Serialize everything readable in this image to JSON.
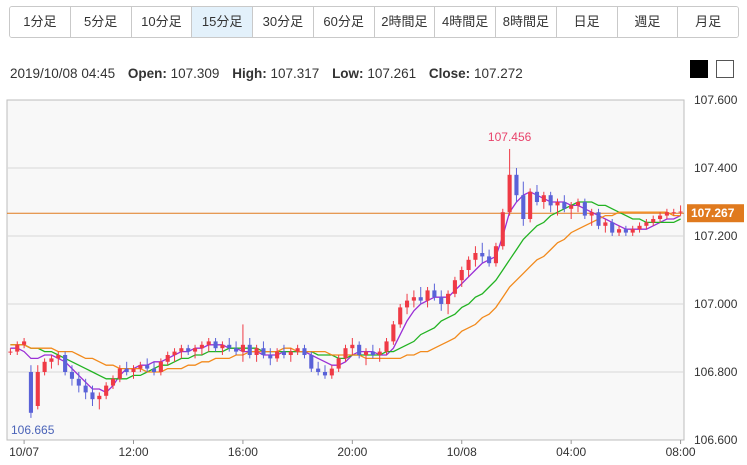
{
  "tabs": [
    {
      "label": "1分足",
      "active": false
    },
    {
      "label": "5分足",
      "active": false
    },
    {
      "label": "10分足",
      "active": false
    },
    {
      "label": "15分足",
      "active": true
    },
    {
      "label": "30分足",
      "active": false
    },
    {
      "label": "60分足",
      "active": false
    },
    {
      "label": "2時間足",
      "active": false
    },
    {
      "label": "4時間足",
      "active": false
    },
    {
      "label": "8時間足",
      "active": false
    },
    {
      "label": "日足",
      "active": false
    },
    {
      "label": "週足",
      "active": false
    },
    {
      "label": "月足",
      "active": false
    }
  ],
  "ohlc": {
    "datetime": "2019/10/08 04:45",
    "open_label": "Open:",
    "open": "107.309",
    "high_label": "High:",
    "high": "107.317",
    "low_label": "Low:",
    "low": "107.261",
    "close_label": "Close:",
    "close": "107.272"
  },
  "theme": {
    "dark_color": "#000000",
    "light_color": "#ffffff"
  },
  "colors": {
    "up": "#ef3a45",
    "down": "#5a62d8",
    "ma_short": "#9b2fd6",
    "ma_mid": "#22b322",
    "ma_long": "#f28a1c",
    "price_line": "#e07a1e"
  },
  "chart_data": {
    "type": "candlestick",
    "ylim": [
      106.6,
      107.6
    ],
    "y_ticks": [
      "107.600",
      "107.400",
      "107.200",
      "107.000",
      "106.800",
      "106.600"
    ],
    "x_ticks": [
      {
        "label": "10/07",
        "index": 2
      },
      {
        "label": "12:00",
        "index": 18
      },
      {
        "label": "16:00",
        "index": 34
      },
      {
        "label": "20:00",
        "index": 50
      },
      {
        "label": "10/08",
        "index": 66
      },
      {
        "label": "04:00",
        "index": 82
      },
      {
        "label": "08:00",
        "index": 98
      }
    ],
    "current_price": "107.267",
    "high_annotation": {
      "value": "107.456",
      "index": 73
    },
    "low_annotation": {
      "value": "106.665",
      "index": 3
    },
    "series": [
      {
        "name": "",
        "color": "#9b2fd6",
        "values": [
          106.87,
          106.87,
          106.86,
          106.84,
          106.84,
          106.85,
          106.85,
          106.84,
          106.83,
          106.81,
          106.79,
          106.77,
          106.75,
          106.75,
          106.74,
          106.76,
          106.79,
          106.81,
          106.81,
          106.82,
          106.82,
          106.83,
          106.83,
          106.84,
          106.85,
          106.86,
          106.86,
          106.87,
          106.87,
          106.88,
          106.88,
          106.88,
          106.87,
          106.87,
          106.86,
          106.86,
          106.86,
          106.85,
          106.85,
          106.85,
          106.86,
          106.86,
          106.86,
          106.86,
          106.85,
          106.84,
          106.83,
          106.82,
          106.82,
          106.83,
          106.85,
          106.86,
          106.86,
          106.86,
          106.85,
          106.85,
          106.87,
          106.91,
          106.95,
          106.98,
          107.0,
          107.01,
          107.02,
          107.02,
          107.02,
          107.04,
          107.06,
          107.08,
          107.1,
          107.12,
          107.13,
          107.14,
          107.2,
          107.27,
          107.3,
          107.32,
          107.33,
          107.32,
          107.31,
          107.3,
          107.3,
          107.3,
          107.29,
          107.29,
          107.28,
          107.27,
          107.26,
          107.25,
          107.24,
          107.23,
          107.22,
          107.22,
          107.22,
          107.22,
          107.23,
          107.24,
          107.25,
          107.25,
          107.26
        ]
      },
      {
        "name": "",
        "color": "#22b322",
        "values": [
          106.88,
          106.88,
          106.88,
          106.87,
          106.87,
          106.86,
          106.86,
          106.85,
          106.84,
          106.83,
          106.82,
          106.81,
          106.8,
          106.79,
          106.78,
          106.78,
          106.78,
          106.78,
          106.79,
          106.79,
          106.8,
          106.81,
          106.82,
          106.82,
          106.83,
          106.84,
          106.84,
          106.85,
          106.85,
          106.86,
          106.86,
          106.86,
          106.87,
          106.87,
          106.87,
          106.87,
          106.87,
          106.86,
          106.86,
          106.86,
          106.86,
          106.86,
          106.86,
          106.86,
          106.86,
          106.85,
          106.85,
          106.85,
          106.84,
          106.84,
          106.85,
          106.85,
          106.85,
          106.85,
          106.85,
          106.86,
          106.86,
          106.87,
          106.88,
          106.89,
          106.91,
          106.92,
          106.93,
          106.95,
          106.96,
          106.97,
          106.99,
          107.0,
          107.02,
          107.03,
          107.05,
          107.07,
          107.1,
          107.13,
          107.16,
          107.19,
          107.21,
          107.23,
          107.24,
          107.26,
          107.27,
          107.28,
          107.29,
          107.3,
          107.3,
          107.3,
          107.29,
          107.29,
          107.28,
          107.27,
          107.26,
          107.25,
          107.25,
          107.24,
          107.24,
          107.24,
          107.24,
          107.24,
          107.25
        ]
      },
      {
        "name": "",
        "color": "#f28a1c",
        "values": [
          106.88,
          106.88,
          106.88,
          106.87,
          106.87,
          106.87,
          106.87,
          106.86,
          106.86,
          106.86,
          106.85,
          106.84,
          106.84,
          106.83,
          106.82,
          106.82,
          106.81,
          106.81,
          106.81,
          106.81,
          106.8,
          106.8,
          106.8,
          106.81,
          106.81,
          106.81,
          106.82,
          106.82,
          106.83,
          106.83,
          106.84,
          106.84,
          106.84,
          106.85,
          106.85,
          106.86,
          106.86,
          106.86,
          106.86,
          106.86,
          106.87,
          106.87,
          106.86,
          106.86,
          106.86,
          106.86,
          106.86,
          106.85,
          106.85,
          106.85,
          106.85,
          106.85,
          106.84,
          106.84,
          106.84,
          106.84,
          106.84,
          106.84,
          106.85,
          106.85,
          106.86,
          106.86,
          106.87,
          106.88,
          106.89,
          106.9,
          106.92,
          106.93,
          106.94,
          106.96,
          106.97,
          106.99,
          107.02,
          107.05,
          107.07,
          107.09,
          107.11,
          107.13,
          107.14,
          107.16,
          107.18,
          107.19,
          107.21,
          107.22,
          107.23,
          107.24,
          107.25,
          107.26,
          107.26,
          107.27,
          107.27,
          107.27,
          107.27,
          107.27,
          107.27,
          107.27,
          107.27,
          107.26,
          107.26
        ]
      }
    ],
    "candles": [
      [
        106.86,
        106.87,
        106.85,
        106.86
      ],
      [
        106.86,
        106.89,
        106.85,
        106.88
      ],
      [
        106.88,
        106.9,
        106.87,
        106.89
      ],
      [
        106.8,
        106.82,
        106.665,
        106.68
      ],
      [
        106.7,
        106.82,
        106.69,
        106.8
      ],
      [
        106.8,
        106.84,
        106.79,
        106.83
      ],
      [
        106.83,
        106.85,
        106.81,
        106.84
      ],
      [
        106.84,
        106.86,
        106.82,
        106.85
      ],
      [
        106.85,
        106.86,
        106.79,
        106.8
      ],
      [
        106.8,
        106.82,
        106.76,
        106.78
      ],
      [
        106.78,
        106.8,
        106.74,
        106.76
      ],
      [
        106.76,
        106.78,
        106.72,
        106.74
      ],
      [
        106.74,
        106.76,
        106.7,
        106.72
      ],
      [
        106.72,
        106.74,
        106.69,
        106.73
      ],
      [
        106.73,
        106.77,
        106.72,
        106.76
      ],
      [
        106.76,
        106.79,
        106.75,
        106.78
      ],
      [
        106.78,
        106.82,
        106.77,
        106.81
      ],
      [
        106.81,
        106.83,
        106.79,
        106.8
      ],
      [
        106.8,
        106.82,
        106.78,
        106.81
      ],
      [
        106.81,
        106.83,
        106.8,
        106.82
      ],
      [
        106.82,
        106.84,
        106.8,
        106.81
      ],
      [
        106.81,
        106.83,
        106.79,
        106.8
      ],
      [
        106.8,
        106.84,
        106.79,
        106.83
      ],
      [
        106.83,
        106.86,
        106.82,
        106.85
      ],
      [
        106.85,
        106.87,
        106.83,
        106.86
      ],
      [
        106.86,
        106.88,
        106.84,
        106.87
      ],
      [
        106.87,
        106.88,
        106.85,
        106.86
      ],
      [
        106.86,
        106.88,
        106.84,
        106.87
      ],
      [
        106.87,
        106.89,
        106.85,
        106.88
      ],
      [
        106.88,
        106.9,
        106.86,
        106.89
      ],
      [
        106.89,
        106.9,
        106.86,
        106.87
      ],
      [
        106.87,
        106.89,
        106.85,
        106.88
      ],
      [
        106.88,
        106.9,
        106.86,
        106.87
      ],
      [
        106.87,
        106.89,
        106.85,
        106.86
      ],
      [
        106.86,
        106.94,
        106.83,
        106.88
      ],
      [
        106.88,
        106.9,
        106.84,
        106.85
      ],
      [
        106.85,
        106.88,
        106.83,
        106.87
      ],
      [
        106.87,
        106.89,
        106.84,
        106.85
      ],
      [
        106.85,
        106.87,
        106.82,
        106.84
      ],
      [
        106.84,
        106.87,
        106.83,
        106.86
      ],
      [
        106.86,
        106.88,
        106.84,
        106.85
      ],
      [
        106.85,
        106.87,
        106.83,
        106.86
      ],
      [
        106.86,
        106.88,
        106.85,
        106.87
      ],
      [
        106.87,
        106.88,
        106.84,
        106.85
      ],
      [
        106.85,
        106.86,
        106.8,
        106.81
      ],
      [
        106.81,
        106.83,
        106.79,
        106.8
      ],
      [
        106.8,
        106.82,
        106.78,
        106.79
      ],
      [
        106.79,
        106.82,
        106.78,
        106.81
      ],
      [
        106.81,
        106.85,
        106.8,
        106.84
      ],
      [
        106.84,
        106.88,
        106.83,
        106.87
      ],
      [
        106.87,
        106.9,
        106.85,
        106.88
      ],
      [
        106.88,
        106.89,
        106.84,
        106.85
      ],
      [
        106.85,
        106.87,
        106.82,
        106.86
      ],
      [
        106.86,
        106.88,
        106.84,
        106.85
      ],
      [
        106.85,
        106.87,
        106.83,
        106.86
      ],
      [
        106.86,
        106.9,
        106.85,
        106.89
      ],
      [
        106.89,
        106.95,
        106.88,
        106.94
      ],
      [
        106.94,
        107.0,
        106.93,
        106.99
      ],
      [
        106.99,
        107.03,
        106.97,
        107.01
      ],
      [
        107.01,
        107.04,
        106.99,
        107.02
      ],
      [
        107.02,
        107.05,
        107.0,
        107.01
      ],
      [
        107.01,
        107.05,
        106.99,
        107.04
      ],
      [
        107.04,
        107.06,
        107.01,
        107.02
      ],
      [
        107.02,
        107.04,
        106.98,
        107.0
      ],
      [
        107.0,
        107.04,
        106.97,
        107.03
      ],
      [
        107.03,
        107.08,
        107.02,
        107.07
      ],
      [
        107.07,
        107.11,
        107.05,
        107.1
      ],
      [
        107.1,
        107.14,
        107.08,
        107.13
      ],
      [
        107.13,
        107.17,
        107.11,
        107.15
      ],
      [
        107.15,
        107.18,
        107.12,
        107.14
      ],
      [
        107.14,
        107.16,
        107.11,
        107.12
      ],
      [
        107.12,
        107.18,
        107.11,
        107.17
      ],
      [
        107.17,
        107.28,
        107.16,
        107.27
      ],
      [
        107.27,
        107.456,
        107.26,
        107.38
      ],
      [
        107.38,
        107.4,
        107.3,
        107.32
      ],
      [
        107.32,
        107.36,
        107.23,
        107.25
      ],
      [
        107.25,
        107.34,
        107.24,
        107.33
      ],
      [
        107.33,
        107.35,
        107.29,
        107.3
      ],
      [
        107.3,
        107.33,
        107.28,
        107.32
      ],
      [
        107.32,
        107.33,
        107.27,
        107.29
      ],
      [
        107.29,
        107.31,
        107.26,
        107.3
      ],
      [
        107.3,
        107.32,
        107.27,
        107.28
      ],
      [
        107.28,
        107.3,
        107.25,
        107.29
      ],
      [
        107.29,
        107.31,
        107.27,
        107.3
      ],
      [
        107.3,
        107.31,
        107.25,
        107.26
      ],
      [
        107.26,
        107.28,
        107.23,
        107.27
      ],
      [
        107.27,
        107.28,
        107.22,
        107.23
      ],
      [
        107.23,
        107.25,
        107.21,
        107.24
      ],
      [
        107.24,
        107.25,
        107.2,
        107.21
      ],
      [
        107.21,
        107.23,
        107.2,
        107.22
      ],
      [
        107.22,
        107.23,
        107.2,
        107.21
      ],
      [
        107.21,
        107.23,
        107.2,
        107.22
      ],
      [
        107.22,
        107.24,
        107.21,
        107.23
      ],
      [
        107.23,
        107.25,
        107.22,
        107.24
      ],
      [
        107.24,
        107.26,
        107.23,
        107.25
      ],
      [
        107.25,
        107.27,
        107.24,
        107.26
      ],
      [
        107.26,
        107.28,
        107.25,
        107.27
      ],
      [
        107.27,
        107.28,
        107.26,
        107.27
      ],
      [
        107.27,
        107.29,
        107.26,
        107.272
      ]
    ]
  }
}
